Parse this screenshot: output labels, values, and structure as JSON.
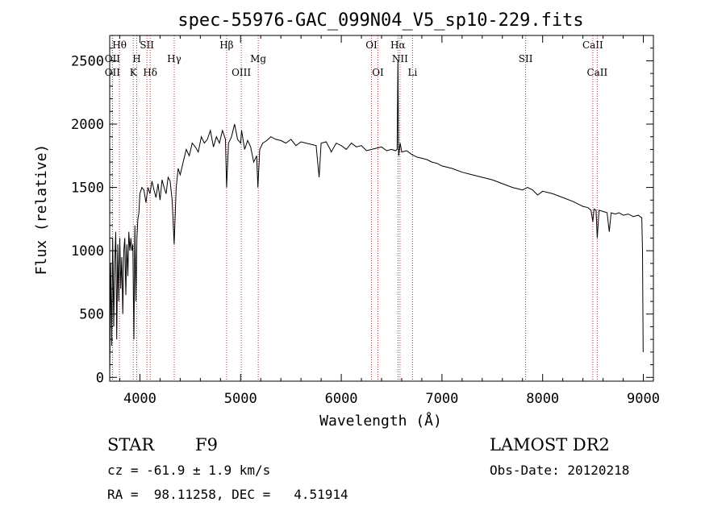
{
  "chart_data": {
    "type": "line",
    "title": "spec-55976-GAC_099N04_V5_sp10-229.fits",
    "xlabel": "Wavelength (Å)",
    "ylabel": "Flux (relative)",
    "xlim": [
      3700,
      9100
    ],
    "ylim": [
      -30,
      2700
    ],
    "xticks": [
      4000,
      5000,
      6000,
      7000,
      8000,
      9000
    ],
    "yticks": [
      0,
      500,
      1000,
      1500,
      2000,
      2500
    ],
    "xtick_labels": [
      "4000",
      "5000",
      "6000",
      "7000",
      "8000",
      "9000"
    ],
    "ytick_labels": [
      "0",
      "500",
      "1000",
      "1500",
      "2000",
      "2500"
    ],
    "grid": false,
    "series": [
      {
        "name": "flux",
        "x": [
          3700,
          3710,
          3720,
          3730,
          3740,
          3750,
          3760,
          3770,
          3780,
          3790,
          3800,
          3810,
          3820,
          3830,
          3840,
          3850,
          3860,
          3870,
          3880,
          3890,
          3900,
          3910,
          3920,
          3930,
          3940,
          3950,
          3960,
          3970,
          3980,
          3990,
          4000,
          4020,
          4040,
          4060,
          4080,
          4100,
          4120,
          4140,
          4160,
          4180,
          4200,
          4220,
          4240,
          4260,
          4280,
          4300,
          4320,
          4340,
          4360,
          4380,
          4400,
          4430,
          4460,
          4490,
          4520,
          4550,
          4580,
          4610,
          4640,
          4670,
          4700,
          4730,
          4760,
          4790,
          4820,
          4850,
          4861,
          4880,
          4910,
          4940,
          4970,
          5000,
          5010,
          5040,
          5070,
          5100,
          5130,
          5160,
          5172,
          5190,
          5220,
          5260,
          5300,
          5350,
          5400,
          5450,
          5500,
          5550,
          5600,
          5650,
          5700,
          5750,
          5780,
          5800,
          5850,
          5890,
          5900,
          5950,
          6000,
          6050,
          6100,
          6150,
          6200,
          6250,
          6300,
          6350,
          6400,
          6450,
          6500,
          6540,
          6555,
          6563,
          6570,
          6585,
          6600,
          6650,
          6700,
          6750,
          6800,
          6850,
          6900,
          6950,
          7000,
          7100,
          7200,
          7300,
          7400,
          7500,
          7600,
          7700,
          7800,
          7850,
          7900,
          7950,
          8000,
          8100,
          8200,
          8300,
          8400,
          8450,
          8480,
          8498,
          8510,
          8530,
          8542,
          8560,
          8600,
          8640,
          8662,
          8680,
          8720,
          8760,
          8800,
          8850,
          8900,
          8950,
          8985,
          8992,
          8998
        ],
        "values": [
          0,
          900,
          250,
          1100,
          400,
          900,
          1150,
          300,
          1050,
          600,
          1100,
          700,
          950,
          500,
          1000,
          1100,
          650,
          1050,
          800,
          1150,
          1000,
          1100,
          1000,
          1050,
          300,
          1200,
          600,
          1100,
          1250,
          1300,
          1450,
          1500,
          1480,
          1380,
          1500,
          1450,
          1550,
          1480,
          1420,
          1530,
          1400,
          1560,
          1500,
          1450,
          1580,
          1550,
          1400,
          1050,
          1500,
          1650,
          1600,
          1700,
          1800,
          1750,
          1850,
          1820,
          1780,
          1900,
          1850,
          1880,
          1950,
          1820,
          1900,
          1850,
          1950,
          1880,
          1500,
          1850,
          1900,
          2000,
          1880,
          1850,
          1950,
          1800,
          1870,
          1820,
          1700,
          1750,
          1500,
          1800,
          1850,
          1870,
          1900,
          1880,
          1870,
          1850,
          1880,
          1830,
          1860,
          1850,
          1840,
          1830,
          1580,
          1850,
          1860,
          1800,
          1780,
          1850,
          1830,
          1800,
          1850,
          1820,
          1830,
          1790,
          1800,
          1810,
          1820,
          1790,
          1800,
          1790,
          1800,
          2500,
          1750,
          1850,
          1780,
          1790,
          1760,
          1740,
          1730,
          1720,
          1700,
          1690,
          1670,
          1650,
          1620,
          1600,
          1580,
          1560,
          1530,
          1500,
          1480,
          1500,
          1480,
          1440,
          1470,
          1450,
          1420,
          1390,
          1350,
          1340,
          1320,
          1230,
          1330,
          1320,
          1100,
          1320,
          1310,
          1300,
          1150,
          1300,
          1290,
          1300,
          1280,
          1290,
          1270,
          1280,
          1260,
          1000,
          200
        ],
        "color": "#000000"
      }
    ],
    "spectral_lines": {
      "color": "#b03030",
      "lines": [
        {
          "label": "Hθ",
          "wavelength": 3797,
          "row": 1
        },
        {
          "label": "OII",
          "wavelength": 3727,
          "row": 2
        },
        {
          "label": "OII",
          "wavelength": 3727,
          "row": 3
        },
        {
          "label": "H",
          "wavelength": 3968,
          "row": 2
        },
        {
          "label": "K",
          "wavelength": 3934,
          "row": 3
        },
        {
          "label": "SII",
          "wavelength": 4070,
          "row": 1
        },
        {
          "label": "Hδ",
          "wavelength": 4102,
          "row": 3
        },
        {
          "label": "Hγ",
          "wavelength": 4341,
          "row": 2
        },
        {
          "label": "Hβ",
          "wavelength": 4861,
          "row": 1
        },
        {
          "label": "OIII",
          "wavelength": 5007,
          "row": 3
        },
        {
          "label": "Mg",
          "wavelength": 5175,
          "row": 2
        },
        {
          "label": "OI",
          "wavelength": 6300,
          "row": 1
        },
        {
          "label": "OI",
          "wavelength": 6364,
          "row": 3
        },
        {
          "label": "Hα",
          "wavelength": 6563,
          "row": 1
        },
        {
          "label": "NII",
          "wavelength": 6583,
          "row": 2
        },
        {
          "label": "Li",
          "wavelength": 6708,
          "row": 3
        },
        {
          "label": "SII",
          "wavelength": 7831,
          "row": 2
        },
        {
          "label": "CaII",
          "wavelength": 8498,
          "row": 1
        },
        {
          "label": "CaII",
          "wavelength": 8542,
          "row": 3
        }
      ]
    }
  },
  "footer": {
    "object_type": "STAR",
    "subclass": "F9",
    "survey": "LAMOST DR2",
    "redshift": "cz = -61.9 ± 1.9 km/s",
    "obs_date": "Obs-Date: 20120218",
    "coords": "RA =  98.11258, DEC =   4.51914"
  }
}
